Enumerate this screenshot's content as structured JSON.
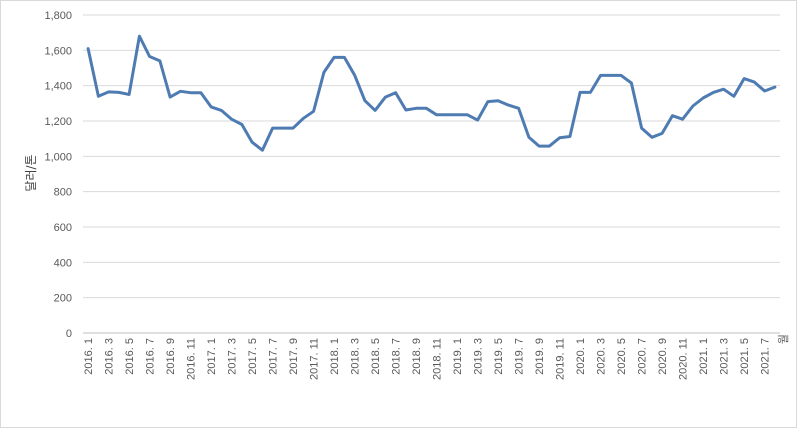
{
  "chart_data": {
    "type": "line",
    "title": "",
    "ylabel": "달러/톤",
    "x_unit_label": "월",
    "ylim": [
      0,
      1800
    ],
    "yticks": [
      0,
      200,
      400,
      600,
      800,
      1000,
      1200,
      1400,
      1600,
      1800
    ],
    "ytick_labels": [
      "0",
      "200",
      "400",
      "600",
      "800",
      "1,000",
      "1,200",
      "1,400",
      "1,600",
      "1,800"
    ],
    "grid": true,
    "line_color": "#4e7cb2",
    "categories": [
      "2016. 1",
      "2016. 2",
      "2016. 3",
      "2016. 4",
      "2016. 5",
      "2016. 6",
      "2016. 7",
      "2016. 8",
      "2016. 9",
      "2016. 10",
      "2016. 11",
      "2016. 12",
      "2017. 1",
      "2017. 2",
      "2017. 3",
      "2017. 4",
      "2017. 5",
      "2017. 6",
      "2017. 7",
      "2017. 8",
      "2017. 9",
      "2017. 10",
      "2017. 11",
      "2017. 12",
      "2018. 1",
      "2018. 2",
      "2018. 3",
      "2018. 4",
      "2018. 5",
      "2018. 6",
      "2018. 7",
      "2018. 8",
      "2018. 9",
      "2018. 10",
      "2018. 11",
      "2018. 12",
      "2019. 1",
      "2019. 2",
      "2019. 3",
      "2019. 4",
      "2019. 5",
      "2019. 6",
      "2019. 7",
      "2019. 8",
      "2019. 9",
      "2019. 10",
      "2019. 11",
      "2019. 12",
      "2020. 1",
      "2020. 2",
      "2020. 3",
      "2020. 4",
      "2020. 5",
      "2020. 6",
      "2020. 7",
      "2020. 8",
      "2020. 9",
      "2020. 10",
      "2020. 11",
      "2020. 12",
      "2021. 1",
      "2021. 2",
      "2021. 3",
      "2021. 4",
      "2021. 5",
      "2021. 6",
      "2021. 7",
      "2021. 8"
    ],
    "labeled_ticks": [
      "2016. 1",
      "2016. 3",
      "2016. 5",
      "2016. 7",
      "2016. 9",
      "2016. 11",
      "2017. 1",
      "2017. 3",
      "2017. 5",
      "2017. 7",
      "2017. 9",
      "2017. 11",
      "2018. 1",
      "2018. 3",
      "2018. 5",
      "2018. 7",
      "2018. 9",
      "2018. 11",
      "2019. 1",
      "2019. 3",
      "2019. 5",
      "2019. 7",
      "2019. 9",
      "2019. 11",
      "2020. 1",
      "2020. 3",
      "2020. 5",
      "2020. 7",
      "2020. 9",
      "2020. 11",
      "2021. 1",
      "2021. 3",
      "2021. 5",
      "2021. 7"
    ],
    "values": [
      1610,
      1340,
      1365,
      1362,
      1350,
      1680,
      1565,
      1540,
      1335,
      1368,
      1360,
      1360,
      1280,
      1260,
      1210,
      1180,
      1080,
      1035,
      1160,
      1160,
      1160,
      1215,
      1255,
      1475,
      1560,
      1560,
      1460,
      1315,
      1260,
      1335,
      1360,
      1262,
      1272,
      1272,
      1235,
      1235,
      1235,
      1235,
      1205,
      1310,
      1315,
      1290,
      1272,
      1108,
      1058,
      1058,
      1105,
      1112,
      1362,
      1362,
      1458,
      1458,
      1458,
      1415,
      1160,
      1108,
      1130,
      1230,
      1210,
      1285,
      1330,
      1362,
      1380,
      1340,
      1440,
      1420,
      1370,
      1392
    ]
  }
}
